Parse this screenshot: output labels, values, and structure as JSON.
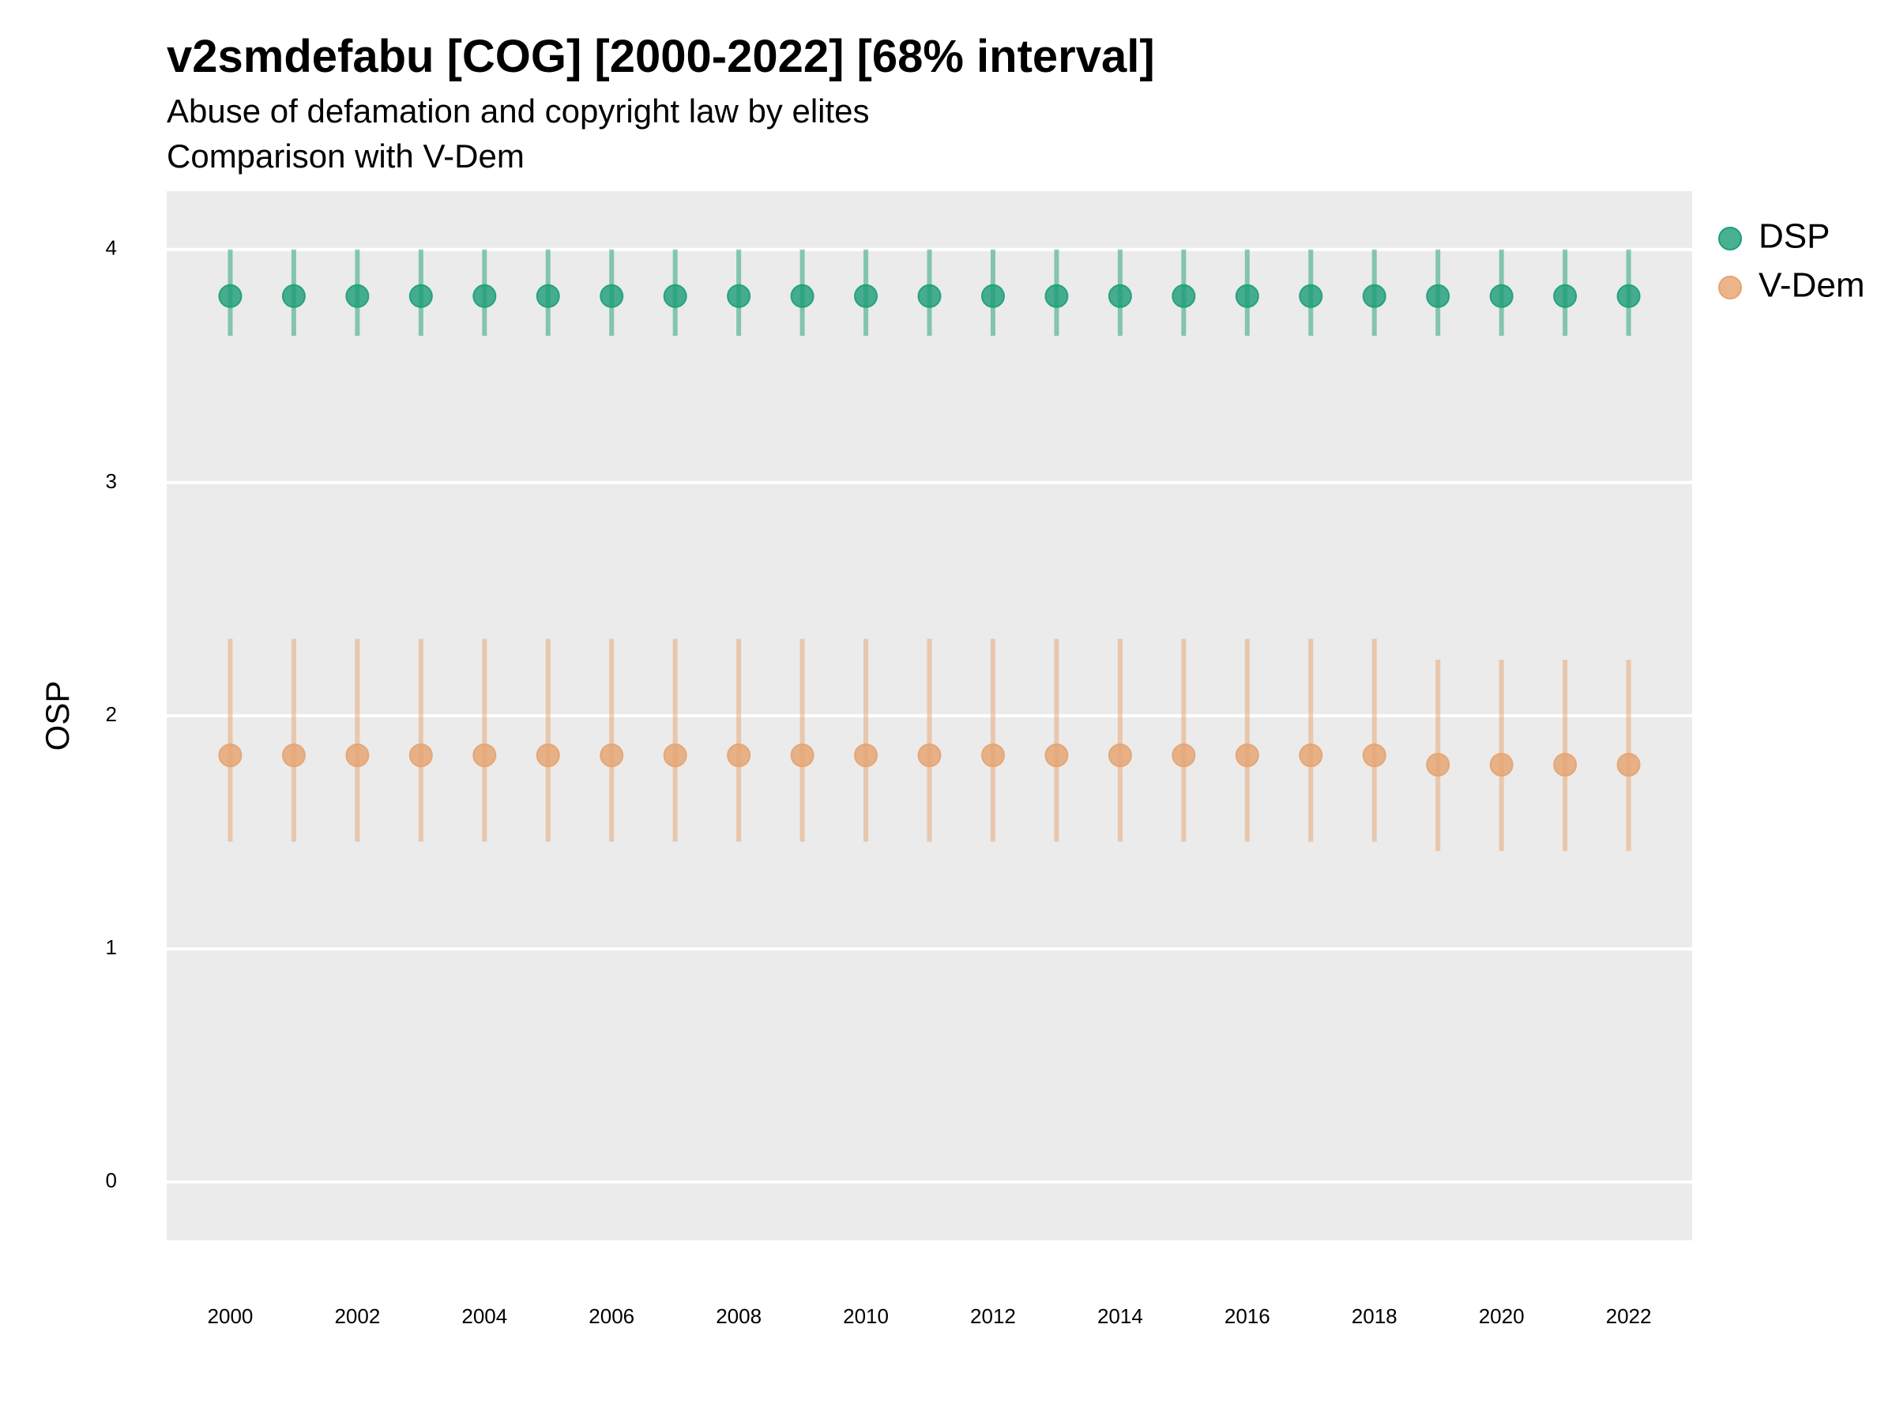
{
  "chart_data": {
    "type": "scatter",
    "title": "v2smdefabu [COG] [2000-2022] [68% interval]",
    "subtitle": [
      "Abuse of defamation and copyright law by elites",
      "Comparison with V-Dem"
    ],
    "xlabel": "",
    "ylabel": "OSP",
    "xlim": [
      1999,
      2023
    ],
    "ylim": [
      -0.25,
      4.25
    ],
    "x_ticks": [
      2000,
      2002,
      2004,
      2006,
      2008,
      2010,
      2012,
      2014,
      2016,
      2018,
      2020,
      2022
    ],
    "y_ticks": [
      0,
      1,
      2,
      3,
      4
    ],
    "grid": true,
    "legend_position": "right-top",
    "x": [
      2000,
      2001,
      2002,
      2003,
      2004,
      2005,
      2006,
      2007,
      2008,
      2009,
      2010,
      2011,
      2012,
      2013,
      2014,
      2015,
      2016,
      2017,
      2018,
      2019,
      2020,
      2021,
      2022
    ],
    "series": [
      {
        "name": "DSP",
        "color": "#1b9e77",
        "values": [
          3.8,
          3.8,
          3.8,
          3.8,
          3.8,
          3.8,
          3.8,
          3.8,
          3.8,
          3.8,
          3.8,
          3.8,
          3.8,
          3.8,
          3.8,
          3.8,
          3.8,
          3.8,
          3.8,
          3.8,
          3.8,
          3.8,
          3.8
        ],
        "lower": [
          3.63,
          3.63,
          3.63,
          3.63,
          3.63,
          3.63,
          3.63,
          3.63,
          3.63,
          3.63,
          3.63,
          3.63,
          3.63,
          3.63,
          3.63,
          3.63,
          3.63,
          3.63,
          3.63,
          3.63,
          3.63,
          3.63,
          3.63
        ],
        "upper": [
          4.0,
          4.0,
          4.0,
          4.0,
          4.0,
          4.0,
          4.0,
          4.0,
          4.0,
          4.0,
          4.0,
          4.0,
          4.0,
          4.0,
          4.0,
          4.0,
          4.0,
          4.0,
          4.0,
          4.0,
          4.0,
          4.0,
          4.0
        ]
      },
      {
        "name": "V-Dem",
        "color": "#e6a36f",
        "values": [
          1.83,
          1.83,
          1.83,
          1.83,
          1.83,
          1.83,
          1.83,
          1.83,
          1.83,
          1.83,
          1.83,
          1.83,
          1.83,
          1.83,
          1.83,
          1.83,
          1.83,
          1.83,
          1.83,
          1.79,
          1.79,
          1.79,
          1.79
        ],
        "lower": [
          1.46,
          1.46,
          1.46,
          1.46,
          1.46,
          1.46,
          1.46,
          1.46,
          1.46,
          1.46,
          1.46,
          1.46,
          1.46,
          1.46,
          1.46,
          1.46,
          1.46,
          1.46,
          1.46,
          1.42,
          1.42,
          1.42,
          1.42
        ],
        "upper": [
          2.33,
          2.33,
          2.33,
          2.33,
          2.33,
          2.33,
          2.33,
          2.33,
          2.33,
          2.33,
          2.33,
          2.33,
          2.33,
          2.33,
          2.33,
          2.33,
          2.33,
          2.33,
          2.33,
          2.24,
          2.24,
          2.24,
          2.24
        ]
      }
    ]
  }
}
